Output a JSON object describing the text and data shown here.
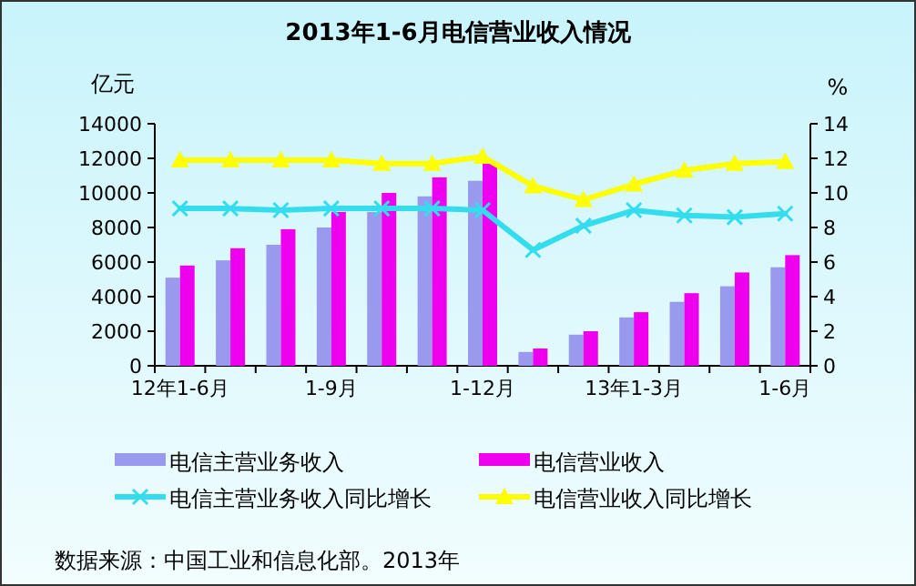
{
  "chart_data": {
    "type": "bar",
    "title": "2013年1-6月电信营业收入情况",
    "ylabel": "亿元",
    "y2label": "%",
    "categories": [
      "12年1-6月",
      null,
      null,
      "1-9月",
      null,
      null,
      "1-12月",
      null,
      null,
      "13年1-3月",
      null,
      null,
      "1-6月"
    ],
    "series": [
      {
        "name": "电信主营业务收入",
        "color": "#9999ee",
        "values": [
          5100,
          6100,
          7000,
          8000,
          8900,
          9800,
          10700,
          800,
          1800,
          2800,
          3700,
          4600,
          5700
        ]
      },
      {
        "name": "电信营业收入",
        "color": "#ee00ee",
        "values": [
          5800,
          6800,
          7900,
          8900,
          10000,
          10900,
          11700,
          1000,
          2000,
          3100,
          4200,
          5400,
          6400
        ]
      },
      {
        "name": "电信主营业务收入同比增长",
        "type": "line",
        "axis": "y2",
        "marker": "cross",
        "color": "#33ddee",
        "values": [
          9.1,
          9.1,
          9.0,
          9.1,
          9.1,
          9.1,
          9.0,
          6.7,
          8.1,
          9.0,
          8.7,
          8.6,
          8.8
        ]
      },
      {
        "name": "电信营业收入同比增长",
        "type": "line",
        "axis": "y2",
        "marker": "triangle",
        "color": "#ffff00",
        "values": [
          11.9,
          11.9,
          11.9,
          11.9,
          11.7,
          11.7,
          12.1,
          10.4,
          9.6,
          10.5,
          11.3,
          11.7,
          11.8
        ]
      }
    ],
    "ylim": [
      0,
      14000
    ],
    "yticks": [
      0,
      2000,
      4000,
      6000,
      8000,
      10000,
      12000,
      14000
    ],
    "y2lim": [
      0,
      14
    ],
    "y2ticks": [
      0,
      2,
      4,
      6,
      8,
      10,
      12,
      14
    ],
    "legend": "bottom",
    "annotations": [
      "数据来源：中国工业和信息化部。2013年"
    ]
  }
}
